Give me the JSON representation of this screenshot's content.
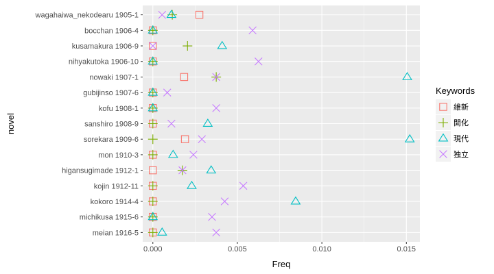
{
  "chart_data": {
    "type": "scatter",
    "xlabel": "Freq",
    "ylabel": "novel",
    "xlim": [
      -0.0006,
      0.0158
    ],
    "x_ticks": [
      0.0,
      0.005,
      0.01,
      0.015
    ],
    "x_tick_labels": [
      "0.000",
      "0.005",
      "0.010",
      "0.015"
    ],
    "grid": true,
    "legend": {
      "title": "Keywords",
      "position": "right"
    },
    "categories": [
      "wagahaiwa_nekodearu 1905-1",
      "bocchan 1906-4",
      "kusamakura 1906-9",
      "nihyakutoka 1906-10",
      "nowaki 1907-1",
      "gubijinso 1907-6",
      "kofu 1908-1",
      "sanshiro 1908-9",
      "sorekara 1909-6",
      "mon 1910-3",
      "higansugimade 1912-1",
      "kojin 1912-11",
      "kokoro 1914-4",
      "michikusa 1915-6",
      "meian 1916-5"
    ],
    "series": [
      {
        "name": "維新",
        "shape": "square",
        "color": "#F8766D",
        "values": [
          0.00275,
          0.0,
          0.0,
          0.0,
          0.00185,
          0.0,
          0.0,
          0.0,
          0.0019,
          0.0,
          0.0,
          0.0,
          0.0,
          0.0,
          0.0
        ]
      },
      {
        "name": "開化",
        "shape": "plus",
        "color": "#7CAE00",
        "values": [
          0.00115,
          0.0,
          0.00205,
          0.0,
          0.00375,
          0.0,
          0.0,
          0.0,
          0.0,
          0.0,
          0.00175,
          0.0,
          0.0,
          0.0,
          0.0
        ]
      },
      {
        "name": "現代",
        "shape": "triangle",
        "color": "#00BFC4",
        "values": [
          0.0011,
          0.0,
          0.0041,
          0.0,
          0.01505,
          0.0,
          0.0,
          0.00325,
          0.0152,
          0.0012,
          0.00345,
          0.0023,
          0.00845,
          0.0,
          0.00055
        ]
      },
      {
        "name": "独立",
        "shape": "cross",
        "color": "#C77CFF",
        "values": [
          0.00055,
          0.0059,
          0.0,
          0.00625,
          0.00375,
          0.00085,
          0.00375,
          0.0011,
          0.0029,
          0.0024,
          0.00175,
          0.00535,
          0.00425,
          0.0035,
          0.00375
        ]
      }
    ]
  }
}
